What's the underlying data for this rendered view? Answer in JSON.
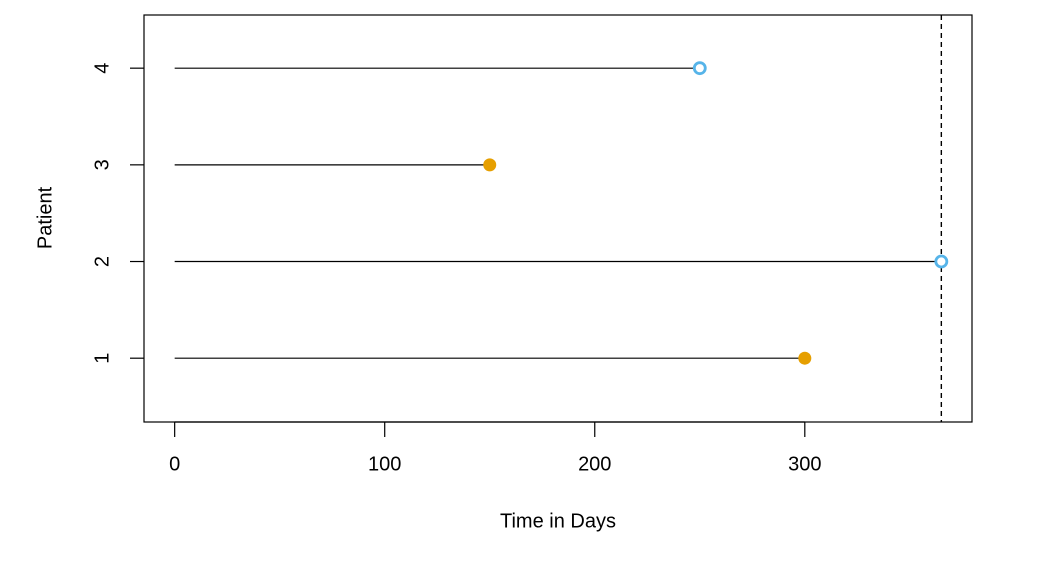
{
  "chart_data": {
    "type": "timeline",
    "xlabel": "Time in Days",
    "ylabel": "Patient",
    "categories": [
      1,
      2,
      3,
      4
    ],
    "start": [
      0,
      0,
      0,
      0
    ],
    "values": [
      300,
      365,
      150,
      250
    ],
    "filled": [
      true,
      false,
      true,
      false
    ],
    "colors": [
      "#E69F00",
      "#56B4E9",
      "#E69F00",
      "#56B4E9"
    ],
    "reference_line": 365,
    "xlim": [
      -14.6,
      379.6
    ],
    "xticks": [
      0,
      100,
      200,
      300
    ],
    "ylim": [
      0.34,
      4.55
    ],
    "yticks": [
      1,
      2,
      3,
      4
    ]
  }
}
